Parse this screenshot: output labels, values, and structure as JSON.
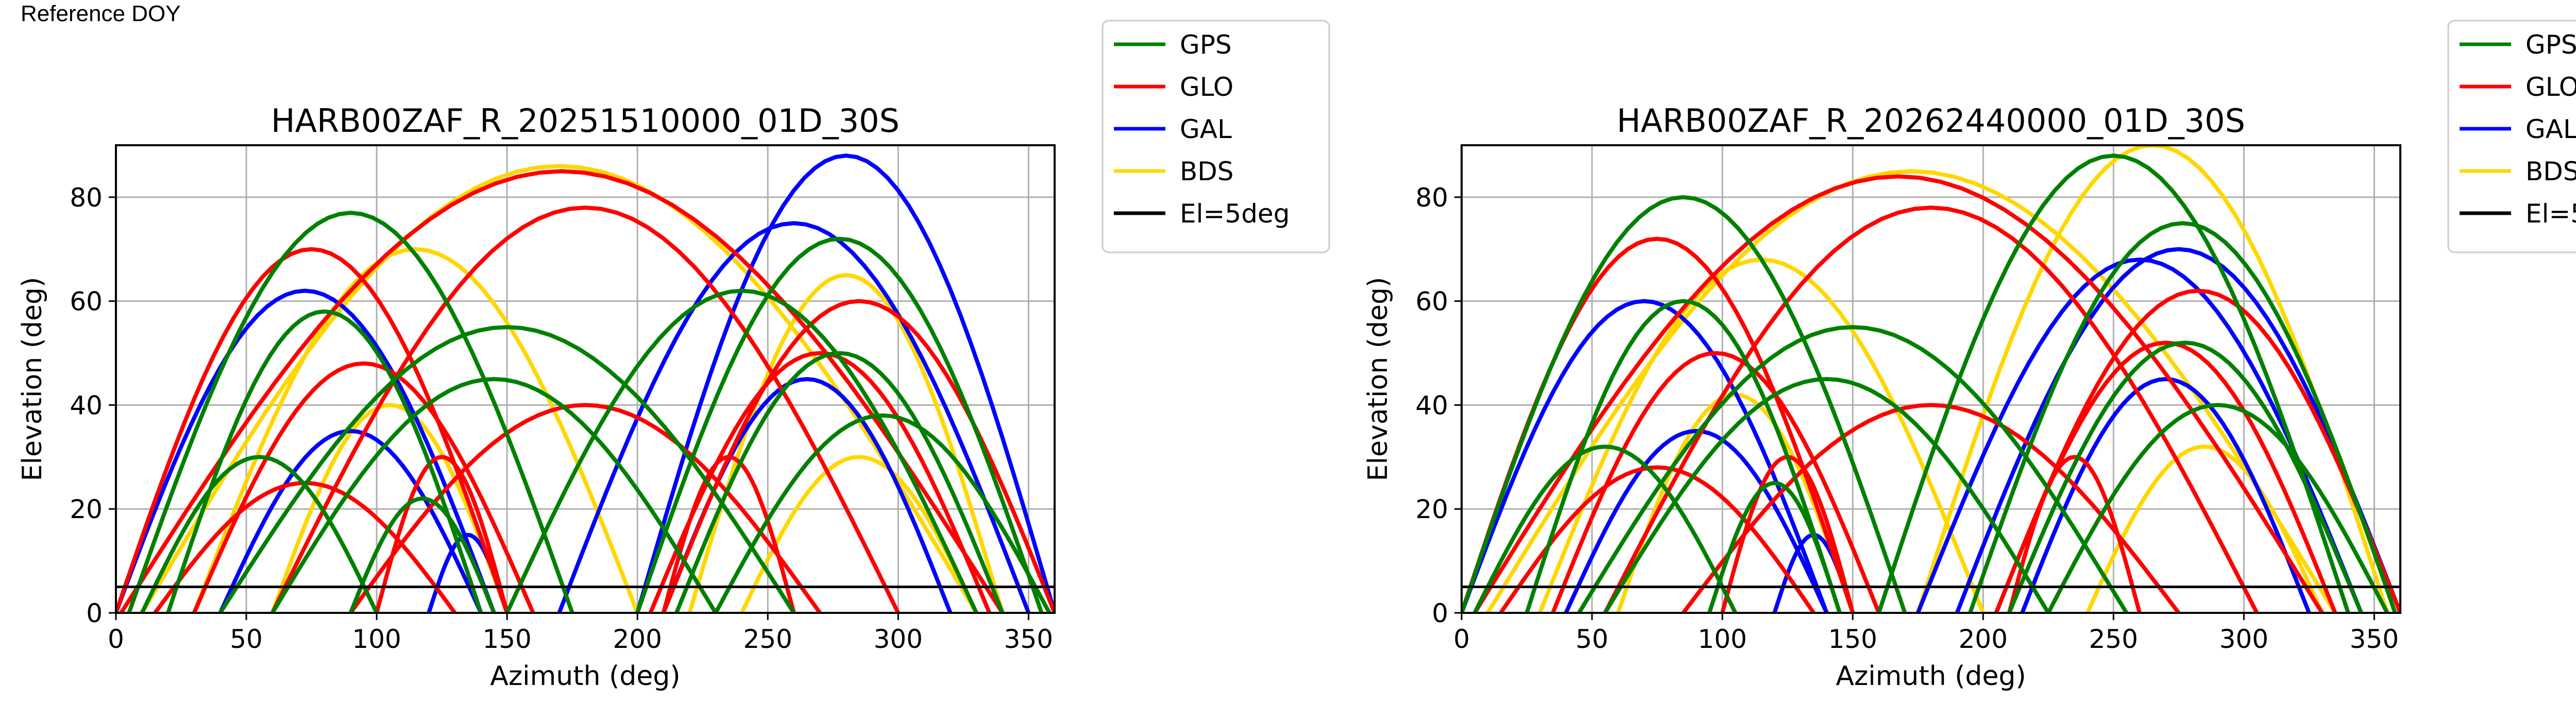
{
  "header": {
    "label": "Reference DOY"
  },
  "colors": {
    "GPS": "#008000",
    "GLO": "#ff0000",
    "GAL": "#0000ff",
    "BDS": "#ffd700",
    "El=5deg": "#000000"
  },
  "chart_data": [
    {
      "type": "scatter",
      "title": "HARB00ZAF_R_20251510000_01D_30S",
      "xlabel": "Azimuth (deg)",
      "ylabel": "Elevation (deg)",
      "xlim": [
        0,
        360
      ],
      "ylim": [
        0,
        90
      ],
      "xticks": [
        0,
        50,
        100,
        150,
        200,
        250,
        300,
        350
      ],
      "yticks": [
        0,
        20,
        40,
        60,
        80
      ],
      "grid": true,
      "legend_position": "outside-right",
      "series": [
        {
          "name": "GPS",
          "color": "#008000",
          "tracks": [
            {
              "az0": 5,
              "az1": 175,
              "peak": 77
            },
            {
              "az0": 20,
              "az1": 140,
              "peak": 58
            },
            {
              "az0": 200,
              "az1": 355,
              "peak": 72
            },
            {
              "az0": 230,
              "az1": 358,
              "peak": 38
            },
            {
              "az0": 40,
              "az1": 260,
              "peak": 55
            },
            {
              "az0": 90,
              "az1": 145,
              "peak": 22
            },
            {
              "az0": 215,
              "az1": 340,
              "peak": 50
            },
            {
              "az0": 10,
              "az1": 100,
              "peak": 30
            },
            {
              "az0": 150,
              "az1": 330,
              "peak": 62
            },
            {
              "az0": 60,
              "az1": 230,
              "peak": 45
            }
          ]
        },
        {
          "name": "GLO",
          "color": "#ff0000",
          "tracks": [
            {
              "az0": 2,
              "az1": 340,
              "peak": 85
            },
            {
              "az0": 30,
              "az1": 160,
              "peak": 48
            },
            {
              "az0": 205,
              "az1": 335,
              "peak": 50
            },
            {
              "az0": 90,
              "az1": 270,
              "peak": 40
            },
            {
              "az0": 0,
              "az1": 150,
              "peak": 70
            },
            {
              "az0": 210,
              "az1": 360,
              "peak": 60
            },
            {
              "az0": 100,
              "az1": 150,
              "peak": 30
            },
            {
              "az0": 210,
              "az1": 260,
              "peak": 30
            },
            {
              "az0": 60,
              "az1": 300,
              "peak": 78
            },
            {
              "az0": 15,
              "az1": 130,
              "peak": 25
            }
          ]
        },
        {
          "name": "GAL",
          "color": "#0000ff",
          "tracks": [
            {
              "az0": 0,
              "az1": 145,
              "peak": 62
            },
            {
              "az0": 200,
              "az1": 360,
              "peak": 88
            },
            {
              "az0": 210,
              "az1": 320,
              "peak": 45
            },
            {
              "az0": 40,
              "az1": 140,
              "peak": 35
            },
            {
              "az0": 170,
              "az1": 350,
              "peak": 75
            },
            {
              "az0": 120,
              "az1": 150,
              "peak": 15
            }
          ]
        },
        {
          "name": "BDS",
          "color": "#ffd700",
          "tracks": [
            {
              "az0": 10,
              "az1": 330,
              "peak": 86
            },
            {
              "az0": 60,
              "az1": 150,
              "peak": 40
            },
            {
              "az0": 220,
              "az1": 340,
              "peak": 65
            },
            {
              "az0": 30,
              "az1": 200,
              "peak": 70
            },
            {
              "az0": 240,
              "az1": 330,
              "peak": 30
            }
          ]
        },
        {
          "name": "El=5deg",
          "color": "#000000",
          "elevation": 5
        }
      ]
    },
    {
      "type": "scatter",
      "title": "HARB00ZAF_R_20262440000_01D_30S",
      "xlabel": "Azimuth (deg)",
      "ylabel": "Elevation (deg)",
      "xlim": [
        0,
        360
      ],
      "ylim": [
        0,
        90
      ],
      "xticks": [
        0,
        50,
        100,
        150,
        200,
        250,
        300,
        350
      ],
      "yticks": [
        0,
        20,
        40,
        60,
        80
      ],
      "grid": true,
      "legend_position": "outside-right",
      "series": [
        {
          "name": "GPS",
          "color": "#008000",
          "tracks": [
            {
              "az0": 0,
              "az1": 170,
              "peak": 80
            },
            {
              "az0": 25,
              "az1": 145,
              "peak": 60
            },
            {
              "az0": 195,
              "az1": 358,
              "peak": 75
            },
            {
              "az0": 225,
              "az1": 355,
              "peak": 40
            },
            {
              "az0": 45,
              "az1": 255,
              "peak": 55
            },
            {
              "az0": 95,
              "az1": 145,
              "peak": 25
            },
            {
              "az0": 210,
              "az1": 345,
              "peak": 52
            },
            {
              "az0": 5,
              "az1": 105,
              "peak": 32
            },
            {
              "az0": 160,
              "az1": 340,
              "peak": 88
            },
            {
              "az0": 55,
              "az1": 225,
              "peak": 45
            }
          ]
        },
        {
          "name": "GLO",
          "color": "#ff0000",
          "tracks": [
            {
              "az0": 5,
              "az1": 330,
              "peak": 84
            },
            {
              "az0": 35,
              "az1": 160,
              "peak": 50
            },
            {
              "az0": 205,
              "az1": 335,
              "peak": 52
            },
            {
              "az0": 85,
              "az1": 275,
              "peak": 40
            },
            {
              "az0": 0,
              "az1": 150,
              "peak": 72
            },
            {
              "az0": 205,
              "az1": 360,
              "peak": 62
            },
            {
              "az0": 100,
              "az1": 150,
              "peak": 30
            },
            {
              "az0": 210,
              "az1": 260,
              "peak": 30
            },
            {
              "az0": 55,
              "az1": 305,
              "peak": 78
            },
            {
              "az0": 15,
              "az1": 135,
              "peak": 28
            }
          ]
        },
        {
          "name": "GAL",
          "color": "#0000ff",
          "tracks": [
            {
              "az0": 0,
              "az1": 140,
              "peak": 60
            },
            {
              "az0": 190,
              "az1": 360,
              "peak": 70
            },
            {
              "az0": 215,
              "az1": 325,
              "peak": 45
            },
            {
              "az0": 40,
              "az1": 140,
              "peak": 35
            },
            {
              "az0": 175,
              "az1": 345,
              "peak": 68
            },
            {
              "az0": 120,
              "az1": 150,
              "peak": 15
            }
          ]
        },
        {
          "name": "BDS",
          "color": "#ffd700",
          "tracks": [
            {
              "az0": 10,
              "az1": 335,
              "peak": 85
            },
            {
              "az0": 60,
              "az1": 150,
              "peak": 42
            },
            {
              "az0": 175,
              "az1": 355,
              "peak": 90
            },
            {
              "az0": 30,
              "az1": 200,
              "peak": 68
            },
            {
              "az0": 240,
              "az1": 330,
              "peak": 32
            }
          ]
        },
        {
          "name": "El=5deg",
          "color": "#000000",
          "elevation": 5
        }
      ]
    }
  ]
}
